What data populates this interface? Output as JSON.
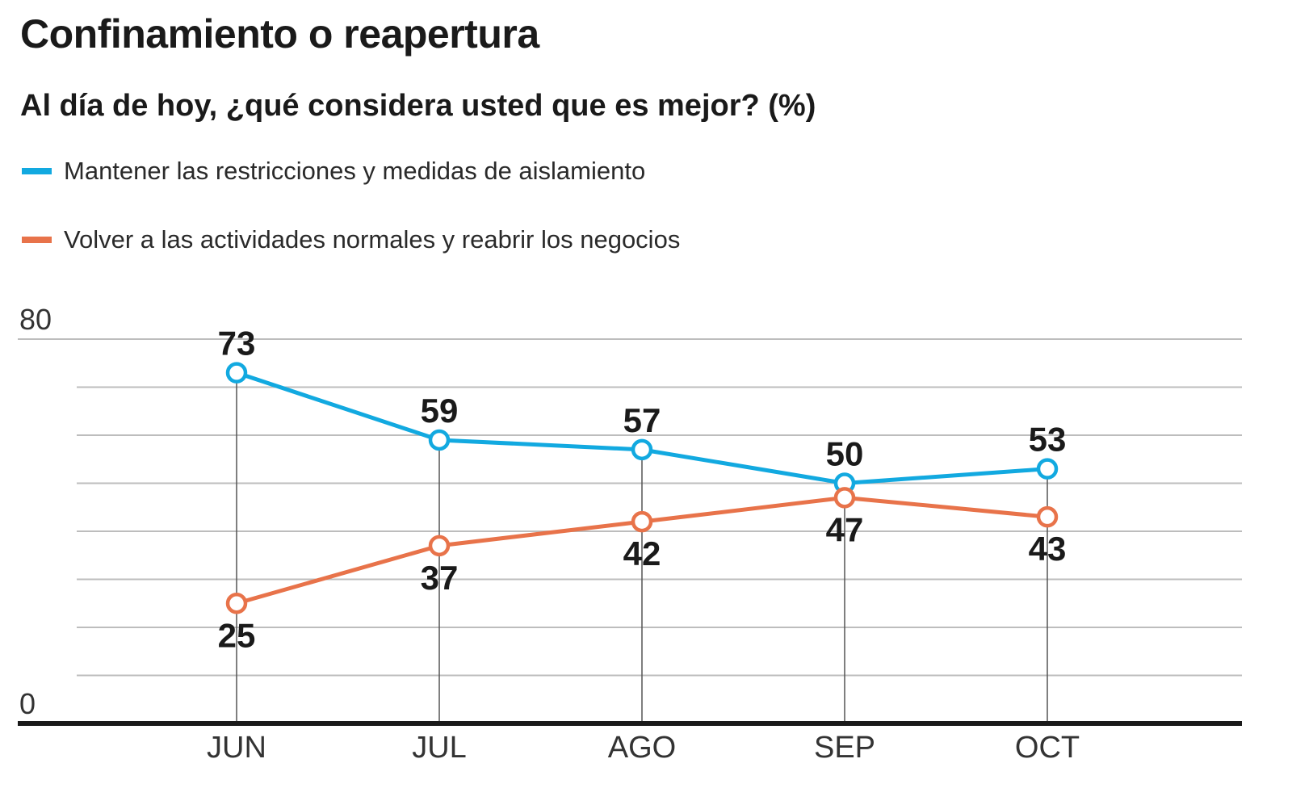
{
  "header": {
    "title": "Confinamiento o reapertura",
    "subtitle": "Al día de hoy, ¿qué considera usted que es mejor?  (%)"
  },
  "legend": [
    {
      "label": "Mantener las restricciones y medidas de aislamiento",
      "color": "#12a9e0"
    },
    {
      "label": "Volver a las actividades normales y reabrir los negocios",
      "color": "#e8734a"
    }
  ],
  "chart_data": {
    "type": "line",
    "title": "Confinamiento o reapertura",
    "subtitle": "Al día de hoy, ¿qué considera usted que es mejor?  (%)",
    "xlabel": "",
    "ylabel": "",
    "categories": [
      "JUN",
      "JUL",
      "AGO",
      "SEP",
      "OCT"
    ],
    "ylim": [
      0,
      80
    ],
    "y_tick_labels": [
      "0",
      "80"
    ],
    "gridlines": [
      10,
      20,
      30,
      40,
      50,
      60,
      70,
      80
    ],
    "grid": true,
    "legend_position": "top-left",
    "series": [
      {
        "name": "Mantener las restricciones y medidas de aislamiento",
        "color": "#12a9e0",
        "values": [
          73,
          59,
          57,
          50,
          53
        ],
        "labels": [
          "73",
          "59",
          "57",
          "50",
          "53"
        ],
        "label_position": [
          "above",
          "above",
          "above",
          "above",
          "above"
        ]
      },
      {
        "name": "Volver a las actividades normales y reabrir los negocios",
        "color": "#e8734a",
        "values": [
          25,
          37,
          42,
          47,
          43
        ],
        "labels": [
          "25",
          "37",
          "42",
          "47",
          "43"
        ],
        "label_position": [
          "below",
          "below",
          "below",
          "below",
          "below"
        ]
      }
    ]
  }
}
